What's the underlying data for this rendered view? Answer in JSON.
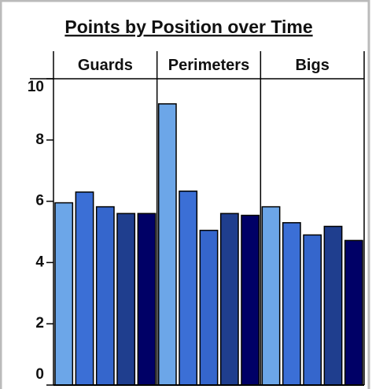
{
  "chart_data": {
    "type": "bar",
    "title": "Points by Position over Time",
    "categories": [
      "Guards",
      "Perimeters",
      "Bigs"
    ],
    "series": [
      {
        "color": "#6ca6e8",
        "values": [
          5.95,
          9.18,
          5.82
        ]
      },
      {
        "color": "#3b6fd6",
        "values": [
          6.3,
          6.33,
          5.3
        ]
      },
      {
        "color": "#3566cc",
        "values": [
          5.82,
          5.05,
          4.9
        ]
      },
      {
        "color": "#1f3e8e",
        "values": [
          5.6,
          5.6,
          5.18
        ]
      },
      {
        "color": "#000066",
        "values": [
          5.6,
          5.54,
          4.72
        ]
      }
    ],
    "ylim": [
      0,
      10
    ],
    "yticks": [
      0,
      2,
      4,
      6,
      8,
      10
    ]
  }
}
